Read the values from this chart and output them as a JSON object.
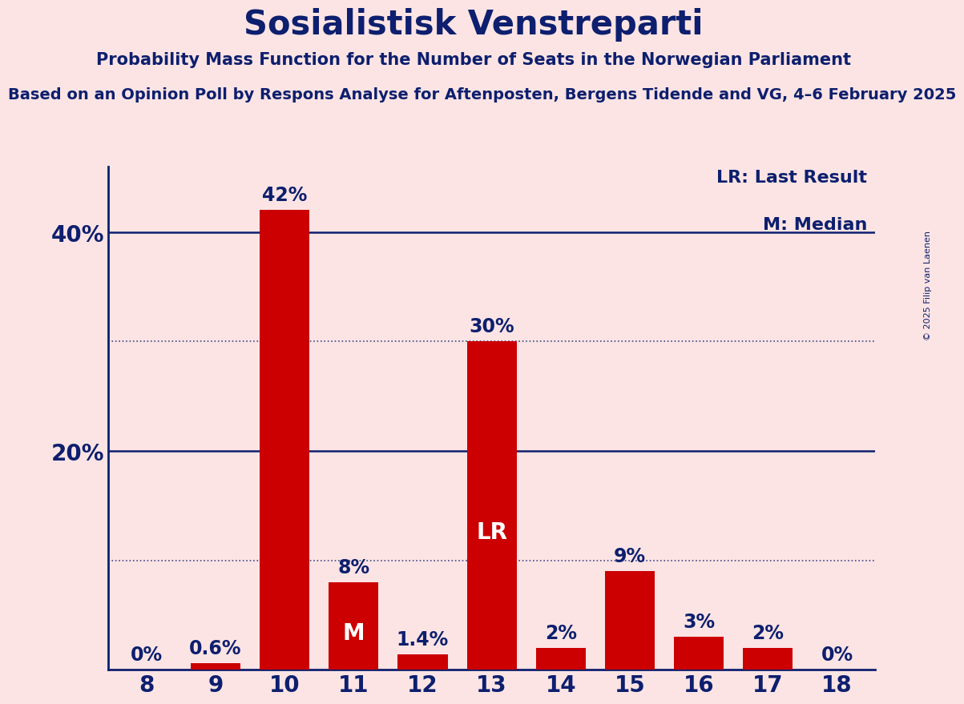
{
  "title": "Sosialistisk Venstreparti",
  "subtitle1": "Probability Mass Function for the Number of Seats in the Norwegian Parliament",
  "subtitle2": "Based on an Opinion Poll by Respons Analyse for Aftenposten, Bergens Tidende and VG, 4–6 February 2025",
  "categories": [
    8,
    9,
    10,
    11,
    12,
    13,
    14,
    15,
    16,
    17,
    18
  ],
  "values": [
    0.0,
    0.6,
    42.0,
    8.0,
    1.4,
    30.0,
    2.0,
    9.0,
    3.0,
    2.0,
    0.0
  ],
  "bar_color": "#cc0000",
  "background_color": "#fce4e4",
  "title_color": "#0d1f6e",
  "label_color": "#0d1f6e",
  "bar_label_color_outside": "#0d1f6e",
  "bar_label_color_inside": "#ffffff",
  "axis_color": "#0d1f6e",
  "grid_color": "#0d1f6e",
  "ytick_labels": [
    "20%",
    "40%"
  ],
  "ytick_values": [
    20,
    40
  ],
  "dotted_lines": [
    10,
    30
  ],
  "solid_lines": [
    20,
    40
  ],
  "ylim": [
    0,
    46
  ],
  "legend_text": [
    "LR: Last Result",
    "M: Median"
  ],
  "lr_bar": 13,
  "median_bar": 11,
  "copyright": "© 2025 Filip van Laenen"
}
